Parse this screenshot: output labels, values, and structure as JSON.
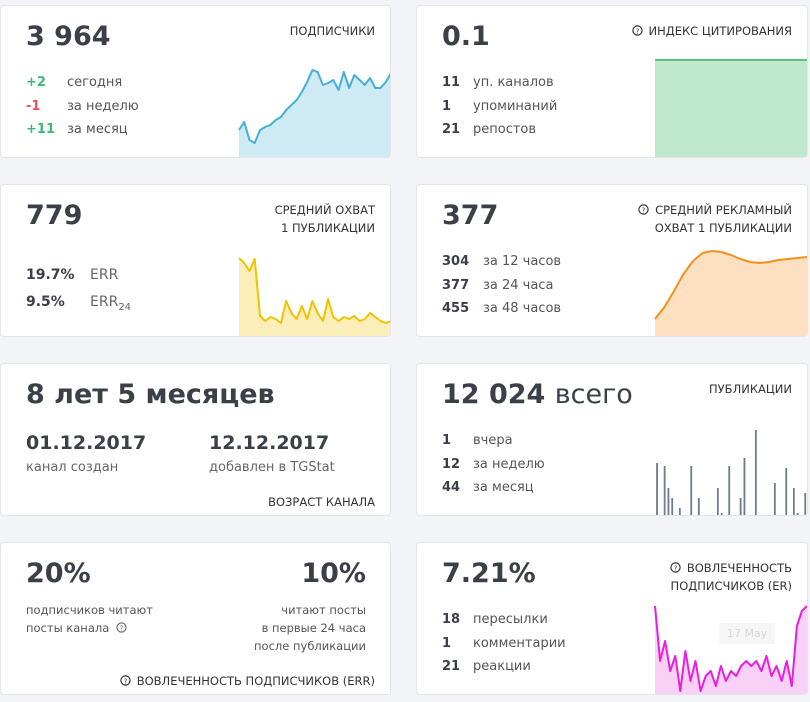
{
  "cards": [
    {
      "value": "3 964",
      "label": "ПОДПИСЧИКИ",
      "stats": [
        {
          "value": "+2",
          "label": "сегодня",
          "color": "#3cb878"
        },
        {
          "value": "-1",
          "label": "за неделю",
          "color": "#e9534f"
        },
        {
          "value": "+11",
          "label": "за месяц",
          "color": "#3cb878"
        }
      ],
      "chart": {
        "type": "area",
        "color": "#45b0d3",
        "fill": "#cdeaf5",
        "ylim": [
          0,
          100
        ],
        "values": [
          30,
          38,
          20,
          17,
          30,
          33,
          35,
          40,
          43,
          50,
          55,
          60,
          68,
          78,
          90,
          88,
          75,
          77,
          80,
          70,
          88,
          72,
          85,
          80,
          75,
          82,
          72,
          72,
          78,
          87
        ]
      }
    },
    {
      "value": "0.1",
      "label": "ИНДЕКС ЦИТИРОВАНИЯ",
      "stats": [
        {
          "value": "11",
          "label": "уп. каналов"
        },
        {
          "value": "1",
          "label": "упоминаний"
        },
        {
          "value": "21",
          "label": "репостов"
        }
      ],
      "chart": {
        "type": "area",
        "color": "#5cc07e",
        "fill": "#bfe8cc",
        "ylim": [
          0,
          100
        ],
        "values": [
          100,
          100,
          100,
          100,
          100,
          100,
          100,
          100
        ]
      }
    },
    {
      "value": "779",
      "label_lines": [
        "СРЕДНИЙ ОХВАТ",
        "1 ПУБЛИКАЦИИ"
      ],
      "stats": [
        {
          "value": "19.7%",
          "label": "ERR"
        },
        {
          "value": "9.5%",
          "label": "ERR",
          "sub": "24"
        }
      ],
      "chart": {
        "type": "area",
        "color": "#f2c200",
        "fill": "#fbeeb8",
        "ylim": [
          0,
          100
        ],
        "values": [
          81,
          76,
          68,
          80,
          23,
          18,
          22,
          20,
          16,
          38,
          26,
          20,
          33,
          20,
          38,
          26,
          18,
          40,
          22,
          18,
          22,
          20,
          23,
          18,
          20,
          26,
          22,
          18,
          16,
          18
        ]
      }
    },
    {
      "value": "377",
      "label_lines": [
        "СРЕДНИЙ РЕКЛАМНЫЙ",
        "ОХВАТ 1 ПУБЛИКАЦИИ"
      ],
      "stats": [
        {
          "value": "304",
          "label": "за 12 часов"
        },
        {
          "value": "377",
          "label": "за 24 часа"
        },
        {
          "value": "455",
          "label": "за 48 часов"
        }
      ],
      "chart": {
        "type": "area",
        "color": "#f5901e",
        "fill": "#fde0c2",
        "ylim": [
          0,
          100
        ],
        "values": [
          20,
          32,
          48,
          65,
          78,
          86,
          88,
          87,
          84,
          80,
          77,
          76,
          77,
          79,
          80,
          81,
          82
        ]
      }
    },
    {
      "value": "8 лет 5 месяцев",
      "dates": [
        {
          "value": "01.12.2017",
          "label": "канал создан"
        },
        {
          "value": "12.12.2017",
          "label": "добавлен в TGStat"
        }
      ],
      "label": "ВОЗРАСТ КАНАЛА"
    },
    {
      "value": "12 024",
      "suffix": "всего",
      "label": "ПУБЛИКАЦИИ",
      "stats": [
        {
          "value": "1",
          "label": "вчера"
        },
        {
          "value": "12",
          "label": "за неделю"
        },
        {
          "value": "44",
          "label": "за месяц"
        }
      ],
      "chart": {
        "type": "bar",
        "color": "#6d7b8b",
        "ylim": [
          0,
          100
        ],
        "values": [
          55,
          0,
          52,
          30,
          20,
          0,
          10,
          0,
          0,
          52,
          0,
          20,
          0,
          0,
          0,
          0,
          30,
          5,
          0,
          52,
          0,
          0,
          20,
          60,
          0,
          0,
          88,
          0,
          0,
          0,
          0,
          35,
          0,
          0,
          50,
          0,
          30,
          5,
          0,
          25
        ]
      }
    },
    {
      "left": {
        "value": "20%",
        "text_lines": [
          "подписчиков читают",
          "посты канала"
        ]
      },
      "right": {
        "value": "10%",
        "text_lines": [
          "читают посты",
          "в первые 24 часа",
          "после публикации"
        ]
      },
      "label": "ВОВЛЕЧЕННОСТЬ ПОДПИСЧИКОВ (ERR)"
    },
    {
      "value": "7.21%",
      "label_lines": [
        "ВОВЛЕЧЕННОСТЬ",
        "ПОДПИСЧИКОВ (ER)"
      ],
      "stats": [
        {
          "value": "18",
          "label": "пересылки"
        },
        {
          "value": "1",
          "label": "комментарии"
        },
        {
          "value": "21",
          "label": "реакции"
        }
      ],
      "tooltip": "17 May",
      "chart": {
        "type": "area",
        "color": "#e81fe0",
        "fill": "#f9d0f6",
        "ylim": [
          0,
          100
        ],
        "values": [
          91,
          36,
          56,
          26,
          41,
          6,
          46,
          16,
          36,
          6,
          21,
          26,
          11,
          31,
          16,
          26,
          21,
          31,
          36,
          31,
          36,
          26,
          41,
          21,
          31,
          16,
          36,
          11,
          71,
          86,
          91
        ]
      }
    }
  ]
}
